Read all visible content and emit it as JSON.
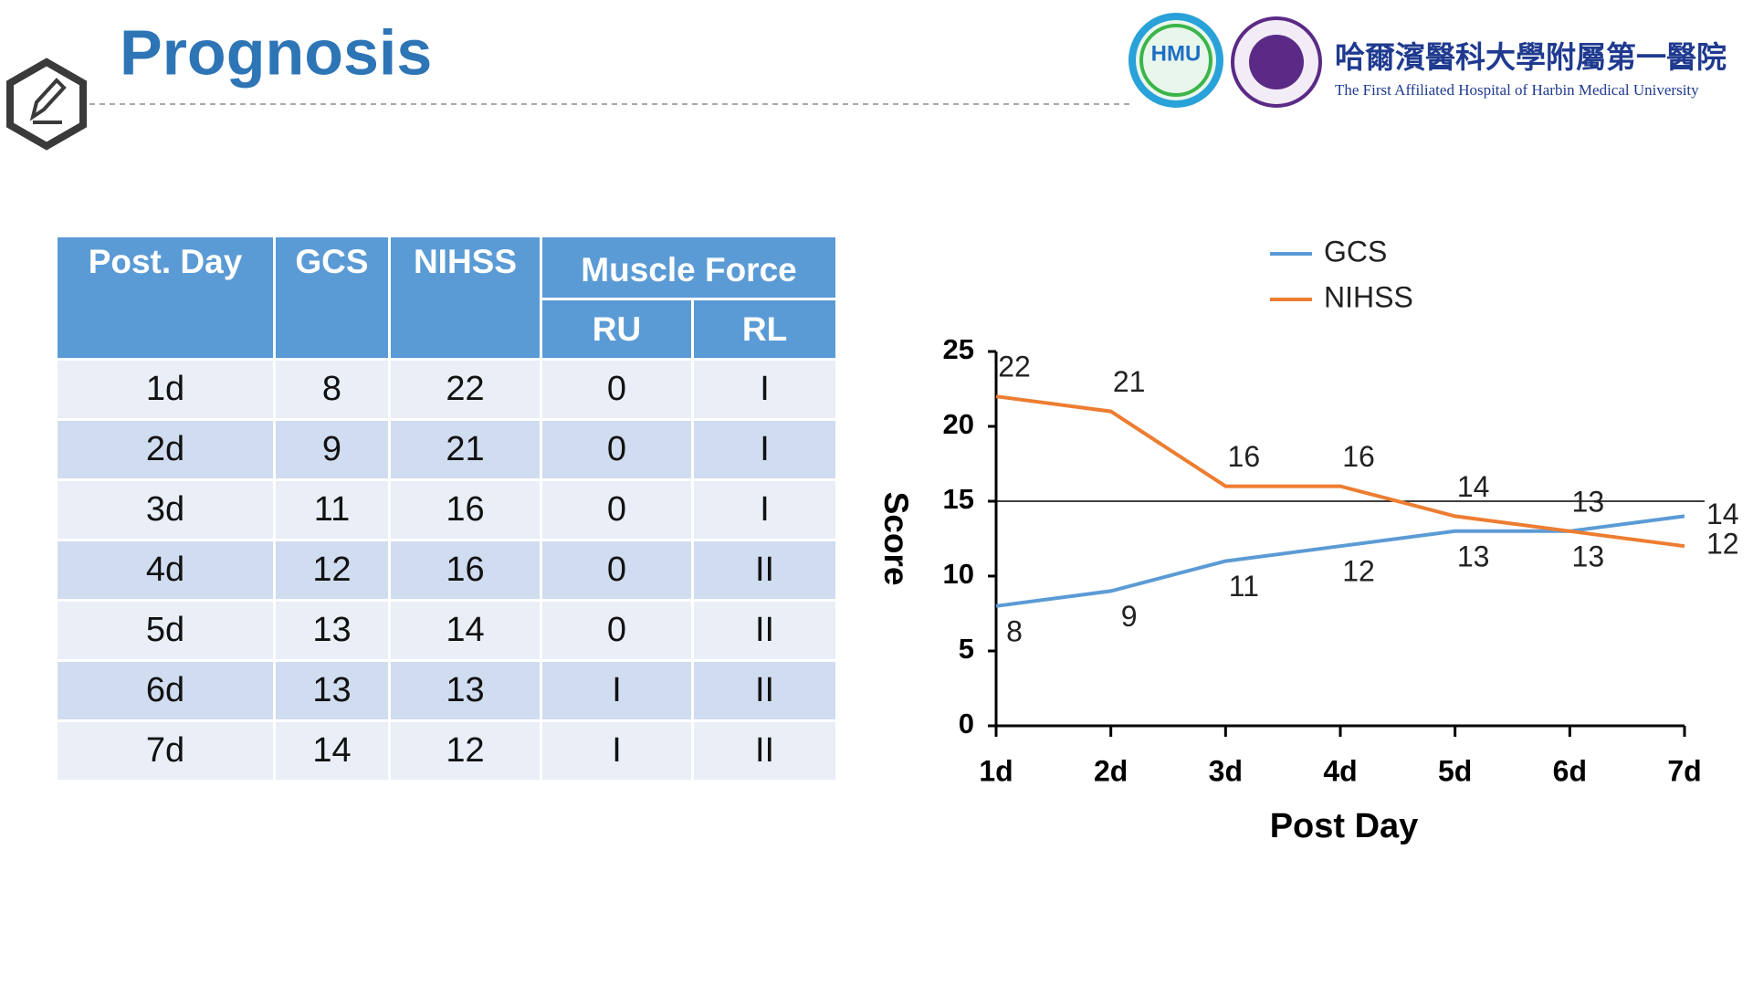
{
  "header": {
    "title": "Prognosis",
    "hospital_cn": "哈爾濱醫科大學附屬第一醫院",
    "hospital_en": "The First Affiliated Hospital of Harbin Medical University",
    "logo_text": "HMU"
  },
  "table": {
    "header": [
      "Post. Day",
      "GCS",
      "NIHSS",
      "Muscle Force"
    ],
    "subheader": [
      "RU",
      "RL"
    ],
    "rows": [
      [
        "1d",
        8,
        22,
        0,
        "I"
      ],
      [
        "2d",
        9,
        21,
        0,
        "I"
      ],
      [
        "3d",
        11,
        16,
        0,
        "I"
      ],
      [
        "4d",
        12,
        16,
        0,
        "II"
      ],
      [
        "5d",
        13,
        14,
        0,
        "II"
      ],
      [
        "6d",
        13,
        13,
        "I",
        "II"
      ],
      [
        "7d",
        14,
        12,
        "I",
        "II"
      ]
    ]
  },
  "chart_data": {
    "type": "line",
    "x_label": "Post Day",
    "y_label": "Score",
    "categories": [
      "1d",
      "2d",
      "3d",
      "4d",
      "5d",
      "6d",
      "7d"
    ],
    "series": [
      {
        "name": "GCS",
        "color": "#5b9bd5",
        "values": [
          8,
          9,
          11,
          12,
          13,
          13,
          14
        ]
      },
      {
        "name": "NIHSS",
        "color": "#ed7d31",
        "values": [
          22,
          21,
          16,
          16,
          14,
          13,
          12
        ]
      }
    ],
    "ylim": [
      0,
      25
    ],
    "yticks": [
      0,
      5,
      10,
      15,
      20,
      25
    ],
    "hline": 15,
    "legend": "top",
    "data_labels": true
  }
}
